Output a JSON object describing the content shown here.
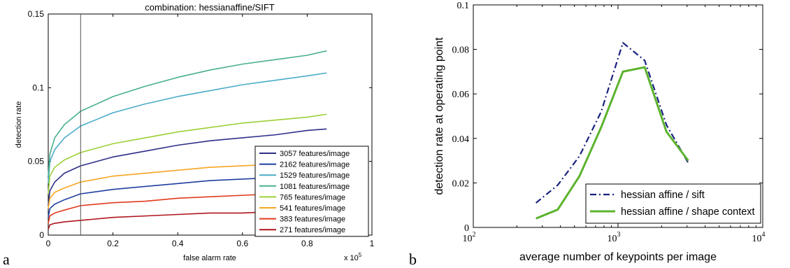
{
  "panel_labels": {
    "left": "a",
    "right": "b"
  },
  "chart_data": [
    {
      "type": "line",
      "title": "combination: hessianaffine/SIFT",
      "xlabel": "false alarm rate",
      "ylabel": "detection rate",
      "x_multiplier_label": "x 10",
      "x_multiplier_exp": "5",
      "xlim": [
        0,
        1
      ],
      "ylim": [
        0,
        0.15
      ],
      "xticks": [
        "0",
        "0.2",
        "0.4",
        "0.6",
        "0.8",
        "1"
      ],
      "yticks": [
        "0",
        "0.05",
        "0.1",
        "0.15"
      ],
      "vertical_marker_x": 0.1,
      "grid": false,
      "legend_position": "bottom-right",
      "x": [
        0,
        0.005,
        0.02,
        0.05,
        0.1,
        0.2,
        0.3,
        0.4,
        0.5,
        0.6,
        0.7,
        0.8,
        0.86
      ],
      "series": [
        {
          "name": "3057 features/image",
          "color": "#2e2e8a",
          "values": [
            0.02,
            0.03,
            0.036,
            0.042,
            0.047,
            0.053,
            0.057,
            0.061,
            0.064,
            0.066,
            0.068,
            0.071,
            0.072
          ]
        },
        {
          "name": "2162 features/image",
          "color": "#1e3fa0",
          "values": [
            0.012,
            0.018,
            0.021,
            0.024,
            0.028,
            0.031,
            0.033,
            0.035,
            0.037,
            0.038,
            0.039,
            0.04,
            0.041
          ]
        },
        {
          "name": "1529 features/image",
          "color": "#4aacc8",
          "values": [
            0.035,
            0.05,
            0.058,
            0.066,
            0.074,
            0.083,
            0.089,
            0.094,
            0.098,
            0.102,
            0.105,
            0.108,
            0.11
          ]
        },
        {
          "name": "1081 features/image",
          "color": "#48b08a",
          "values": [
            0.04,
            0.055,
            0.066,
            0.075,
            0.084,
            0.094,
            0.101,
            0.107,
            0.112,
            0.116,
            0.119,
            0.122,
            0.125
          ]
        },
        {
          "name": "765 features/image",
          "color": "#9ccf35",
          "values": [
            0.028,
            0.04,
            0.046,
            0.051,
            0.056,
            0.062,
            0.066,
            0.07,
            0.073,
            0.076,
            0.078,
            0.08,
            0.082
          ]
        },
        {
          "name": "541 features/image",
          "color": "#f5a623",
          "values": [
            0.018,
            0.025,
            0.029,
            0.032,
            0.036,
            0.04,
            0.042,
            0.044,
            0.046,
            0.047,
            0.048,
            0.049,
            0.05
          ]
        },
        {
          "name": "383 features/image",
          "color": "#e03a1e",
          "values": [
            0.008,
            0.013,
            0.015,
            0.017,
            0.02,
            0.022,
            0.023,
            0.025,
            0.026,
            0.027,
            0.028,
            0.029,
            0.029
          ]
        },
        {
          "name": "271 features/image",
          "color": "#b0141c",
          "values": [
            0.004,
            0.007,
            0.008,
            0.009,
            0.01,
            0.012,
            0.013,
            0.014,
            0.015,
            0.015,
            0.016,
            0.016,
            0.016
          ]
        }
      ]
    },
    {
      "type": "line",
      "xlabel": "average number of keypoints per image",
      "ylabel": "detection rate at operating point",
      "xscale": "log",
      "xlim": [
        100,
        10000
      ],
      "ylim": [
        0,
        0.1
      ],
      "xticks": [
        100,
        1000,
        10000
      ],
      "xtick_base": "10",
      "xtick_exps": [
        "2",
        "3",
        "4"
      ],
      "yticks": [
        "0",
        "0.02",
        "0.04",
        "0.06",
        "0.08",
        "0.1"
      ],
      "grid": false,
      "legend_position": "bottom-right",
      "x": [
        271,
        383,
        541,
        765,
        1081,
        1529,
        2162,
        3057
      ],
      "series": [
        {
          "name": "hessian affine / sift",
          "color": "#1a237e",
          "style": "dashdot",
          "values": [
            0.011,
            0.019,
            0.032,
            0.052,
            0.083,
            0.075,
            0.046,
            0.029
          ]
        },
        {
          "name": "hessian affine / shape context",
          "color": "#5cb32e",
          "style": "solid",
          "values": [
            0.004,
            0.008,
            0.023,
            0.045,
            0.07,
            0.072,
            0.043,
            0.03
          ]
        }
      ]
    }
  ]
}
